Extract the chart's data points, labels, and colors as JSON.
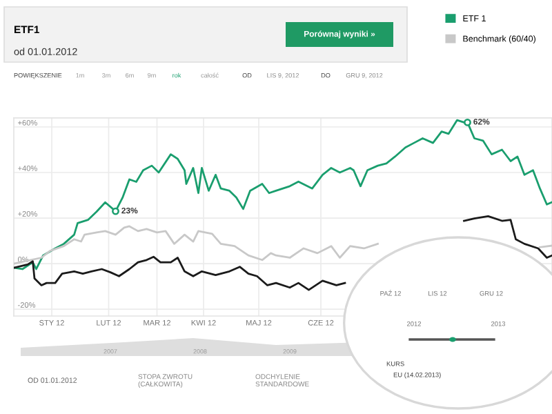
{
  "chart_data": {
    "type": "line",
    "title": "ETF1",
    "subtitle": "od 01.01.2012",
    "x": [
      "2012-01-01",
      "2012-01-06",
      "2012-01-12",
      "2012-01-14",
      "2012-01-18",
      "2012-01-25",
      "2012-01-30",
      "2012-02-05",
      "2012-02-07",
      "2012-02-13",
      "2012-02-18",
      "2012-02-23",
      "2012-02-29",
      "2012-03-04",
      "2012-03-08",
      "2012-03-12",
      "2012-03-16",
      "2012-03-21",
      "2012-03-25",
      "2012-04-01",
      "2012-04-05",
      "2012-04-09",
      "2012-04-10",
      "2012-04-14",
      "2012-04-17",
      "2012-04-19",
      "2012-04-23",
      "2012-04-27",
      "2012-04-30",
      "2012-05-05",
      "2012-05-09",
      "2012-05-13",
      "2012-05-17",
      "2012-05-24",
      "2012-05-28",
      "2012-06-01",
      "2012-06-09",
      "2012-06-14",
      "2012-06-22",
      "2012-06-28",
      "2012-07-03",
      "2012-07-08",
      "2012-07-14",
      "2012-07-16",
      "2012-07-20",
      "2012-07-24",
      "2012-07-30",
      "2012-08-04",
      "2012-08-09",
      "2012-08-15",
      "2012-08-20",
      "2012-08-25",
      "2012-08-31",
      "2012-09-05",
      "2012-09-09",
      "2012-09-14",
      "2012-09-18",
      "2012-09-20",
      "2012-09-24",
      "2012-09-29",
      "2012-10-04",
      "2012-10-10",
      "2012-10-15",
      "2012-10-19",
      "2012-10-23",
      "2012-10-28",
      "2012-11-01",
      "2012-11-05",
      "2012-11-08"
    ],
    "series": [
      {
        "name": "ETF 1",
        "color": "#1a9e6e",
        "values": [
          -1.8,
          -2.4,
          0.6,
          -2.4,
          3.6,
          6.7,
          8.7,
          12.7,
          17.8,
          19.2,
          22.8,
          26.9,
          23,
          28.9,
          37,
          35.9,
          41,
          43,
          40,
          48,
          46,
          41,
          35,
          42,
          31,
          42,
          32,
          39,
          33,
          32,
          29,
          24,
          32,
          35,
          31,
          32,
          34,
          36,
          33,
          39,
          42,
          40,
          42,
          41,
          34,
          41,
          43,
          44,
          47,
          51,
          53,
          55,
          53,
          58,
          57,
          63,
          62,
          62,
          55,
          54,
          48,
          50,
          45,
          47,
          39,
          41,
          33,
          26,
          27
        ]
      },
      {
        "name": "Benchmark (60/40)",
        "color": "#c8c8c8",
        "x": [
          "2012-01-01",
          "2012-01-17",
          "2012-01-22",
          "2012-01-30",
          "2012-02-05",
          "2012-02-09",
          "2012-02-11",
          "2012-02-18",
          "2012-02-23",
          "2012-02-29",
          "2012-03-05",
          "2012-03-08",
          "2012-03-13",
          "2012-03-18",
          "2012-03-24",
          "2012-03-29",
          "2012-04-03",
          "2012-04-09",
          "2012-04-14",
          "2012-04-17",
          "2012-04-25",
          "2012-04-30",
          "2012-05-08",
          "2012-05-16",
          "2012-05-24",
          "2012-05-29",
          "2012-06-01",
          "2012-06-09",
          "2012-06-17",
          "2012-06-25",
          "2012-07-03",
          "2012-07-08",
          "2012-07-14",
          "2012-07-22",
          "2012-07-30",
          "2012-08-04",
          "2012-08-10",
          "2012-11-01",
          "2012-11-08"
        ],
        "values": [
          0,
          2.6,
          5.6,
          7.7,
          10.7,
          9.7,
          12.7,
          13.7,
          14.3,
          12.7,
          15.8,
          16.4,
          14.3,
          15.2,
          13.7,
          14.3,
          8.7,
          12.7,
          9.7,
          14.3,
          13.1,
          8.7,
          7.7,
          3.6,
          1.6,
          4.6,
          3.6,
          2.6,
          6.7,
          4.6,
          7.7,
          2.6,
          7.7,
          6.7,
          8.7,
          null,
          null,
          7.2,
          7.9
        ]
      },
      {
        "color": "#1b1b1b",
        "x": [
          "2012-01-01",
          "2012-01-09",
          "2012-01-12",
          "2012-01-13",
          "2012-01-17",
          "2012-01-20",
          "2012-01-25",
          "2012-01-29",
          "2012-02-05",
          "2012-02-10",
          "2012-02-15",
          "2012-02-21",
          "2012-02-26",
          "2012-03-02",
          "2012-03-08",
          "2012-03-13",
          "2012-03-18",
          "2012-03-22",
          "2012-03-26",
          "2012-04-01",
          "2012-04-05",
          "2012-04-09",
          "2012-04-14",
          "2012-04-19",
          "2012-04-27",
          "2012-05-05",
          "2012-05-11",
          "2012-05-16",
          "2012-05-21",
          "2012-05-27",
          "2012-06-01",
          "2012-06-09",
          "2012-06-14",
          "2012-06-20",
          "2012-06-28",
          "2012-07-06",
          "2012-07-11",
          "2012-07-18",
          "2012-07-24",
          "2012-08-01",
          "2012-08-05",
          "2012-08-28",
          "2012-09-18",
          "2012-09-24",
          "2012-10-02",
          "2012-10-10",
          "2012-10-15",
          "2012-10-18",
          "2012-10-23",
          "2012-10-31",
          "2012-11-05",
          "2012-11-08"
        ],
        "values": [
          -1.8,
          -0.4,
          1,
          -6.5,
          -9.5,
          -8.5,
          -8.5,
          -4.4,
          -3.4,
          -4.4,
          -3.4,
          -2.4,
          -3.8,
          -5.5,
          -2.4,
          0.6,
          1.6,
          3,
          0.6,
          0.6,
          2.6,
          -3.4,
          -5.5,
          -3.4,
          -5,
          -3.4,
          -1.4,
          -4.4,
          -5.5,
          -9.5,
          -8.5,
          -10.5,
          -8.5,
          -11.5,
          -7.5,
          -9.5,
          -8.5,
          null,
          null,
          null,
          null,
          null,
          18.8,
          19.8,
          20.8,
          18.8,
          19.2,
          10.7,
          8.7,
          6.7,
          2.6,
          3.6
        ]
      }
    ],
    "xlim": [
      "2012-01-01",
      "2012-11-08"
    ],
    "xticks": [
      {
        "value": "2012-01-23",
        "label": "STY 12"
      },
      {
        "value": "2012-02-25",
        "label": "LUT 12"
      },
      {
        "value": "2012-03-24",
        "label": "MAR 12"
      },
      {
        "value": "2012-04-20",
        "label": "KWI 12"
      },
      {
        "value": "2012-05-22",
        "label": "MAJ 12"
      },
      {
        "value": "2012-06-27",
        "label": "CZE 12"
      }
    ],
    "ylim": [
      -23,
      64
    ],
    "yticks": [
      {
        "value": -20,
        "label": "-20%"
      },
      {
        "value": 0,
        "label": "0%"
      },
      {
        "value": 20,
        "label": "+20%"
      },
      {
        "value": 40,
        "label": "+40%"
      },
      {
        "value": 60,
        "label": "+60%"
      }
    ],
    "grid": true,
    "legend": "top right",
    "marker": "none",
    "line_style": "solid",
    "annotations": [
      {
        "text": "23%",
        "x": "2012-02-29",
        "y": 23
      },
      {
        "text": "62%",
        "x": "2012-09-20",
        "y": 62
      },
      "Porównaj wyniki »",
      "POWIĘKSZENIE",
      "1m",
      "3m",
      "6m",
      "9m",
      "rok",
      "całość",
      "OD",
      "LIS 9, 2012",
      "DO",
      "GRU 9, 2012",
      "2007",
      "2008",
      "2009",
      "OD 01.01.2012",
      "STOPA ZWROTU\n(CAŁKOWITA)",
      "ODCHYLENIE\nSTANDARDOWE",
      "PAŹ 12",
      "LIS 12",
      "GRU 12",
      "2012",
      "2013",
      "KURS",
      "EU (14.02.2013)"
    ]
  }
}
